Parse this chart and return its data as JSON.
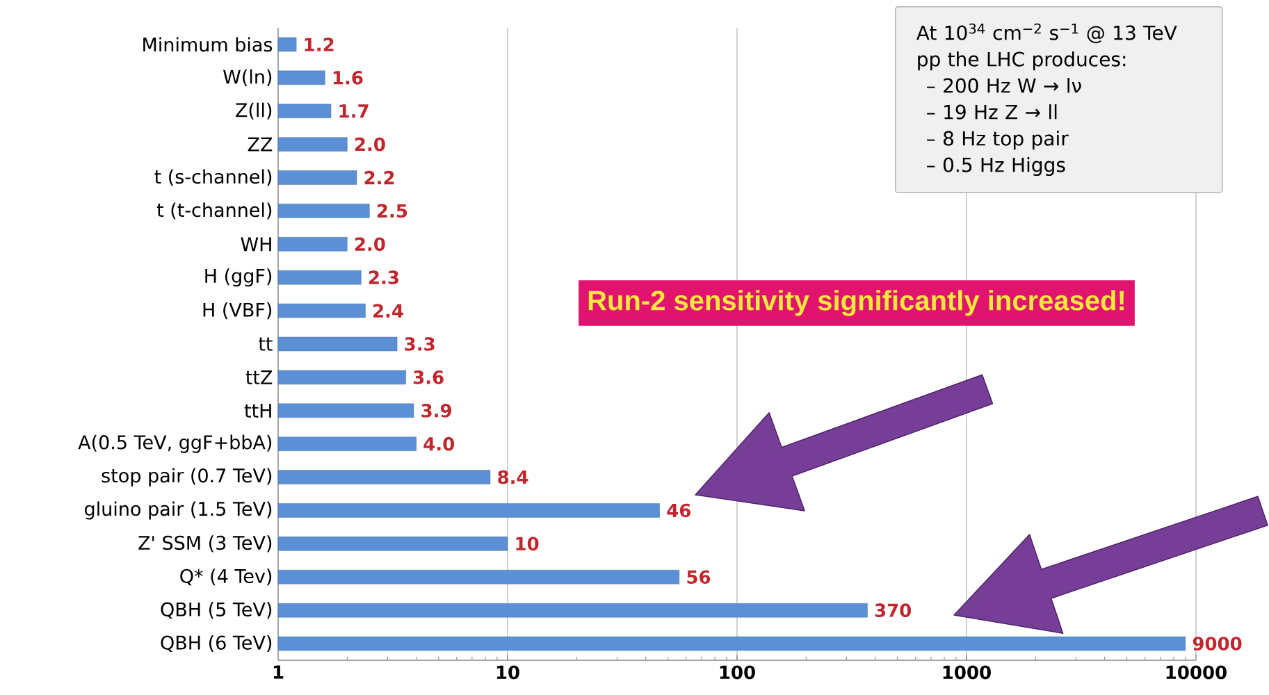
{
  "chart_data": {
    "type": "bar",
    "orientation": "horizontal",
    "categories": [
      "Minimum bias",
      "W(ln)",
      "Z(ll)",
      "ZZ",
      "t (s-channel)",
      "t (t-channel)",
      "WH",
      "H (ggF)",
      "H (VBF)",
      "tt",
      "ttZ",
      "ttH",
      "A(0.5 TeV, ggF+bbA)",
      "stop pair (0.7 TeV)",
      "gluino pair (1.5 TeV)",
      "Z' SSM (3 TeV)",
      "Q* (4 Tev)",
      "QBH (5 TeV)",
      "QBH (6 TeV)"
    ],
    "values": [
      1.2,
      1.6,
      1.7,
      2.0,
      2.2,
      2.5,
      2.0,
      2.3,
      2.4,
      3.3,
      3.6,
      3.9,
      4.0,
      8.4,
      46,
      10,
      56,
      370,
      9000
    ],
    "value_labels": [
      "1.2",
      "1.6",
      "1.7",
      "2.0",
      "2.2",
      "2.5",
      "2.0",
      "2.3",
      "2.4",
      "3.3",
      "3.6",
      "3.9",
      "4.0",
      "8.4",
      "46",
      "10",
      "56",
      "370",
      "9000"
    ],
    "color": "#5b8fd6",
    "log": "x",
    "xlim": [
      1,
      10000
    ],
    "xticks": [
      1,
      10,
      100,
      1000,
      10000
    ],
    "grid": "x",
    "annotations": [
      "At 10$^{34}$ cm$^{−2}$ s$^{−1}$ @ 13 TeV pp the LHC produces:",
      "–   200 Hz W → lν",
      "–   19 Hz Z → ll",
      "–   8 Hz top pair",
      "–   0.5 Hz Higgs",
      "Run-2 sensitivity significantly increased!"
    ]
  }
}
